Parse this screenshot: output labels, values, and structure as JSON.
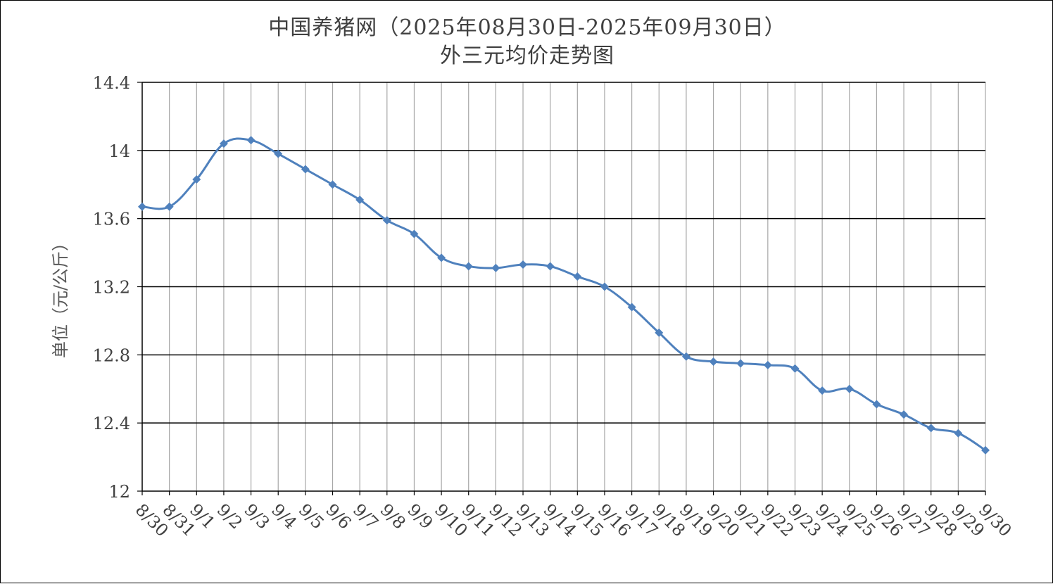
{
  "chart_data": {
    "type": "line",
    "title": "中国养猪网（2025年08月30日-2025年09月30日）",
    "subtitle": "外三元均价走势图",
    "xlabel": "",
    "ylabel": "单位（元/公斤）",
    "ylim": [
      12,
      14.4
    ],
    "yticks": [
      "12",
      "12.4",
      "12.8",
      "13.2",
      "13.6",
      "14",
      "14.4"
    ],
    "grid": true,
    "legend": "none",
    "categories": [
      "8/30",
      "8/31",
      "9/1",
      "9/2",
      "9/3",
      "9/4",
      "9/5",
      "9/6",
      "9/7",
      "9/8",
      "9/9",
      "9/10",
      "9/11",
      "9/12",
      "9/13",
      "9/14",
      "9/15",
      "9/16",
      "9/17",
      "9/18",
      "9/19",
      "9/20",
      "9/21",
      "9/22",
      "9/23",
      "9/24",
      "9/25",
      "9/26",
      "9/27",
      "9/28",
      "9/29",
      "9/30"
    ],
    "series": [
      {
        "values": [
          13.67,
          13.67,
          13.83,
          14.04,
          14.06,
          13.98,
          13.89,
          13.8,
          13.71,
          13.59,
          13.51,
          13.37,
          13.32,
          13.31,
          13.33,
          13.32,
          13.26,
          13.2,
          13.08,
          12.93,
          12.79,
          12.76,
          12.75,
          12.74,
          12.72,
          12.59,
          12.6,
          12.51,
          12.45,
          12.37,
          12.34,
          12.24
        ],
        "color": "#4F81BD"
      }
    ]
  }
}
